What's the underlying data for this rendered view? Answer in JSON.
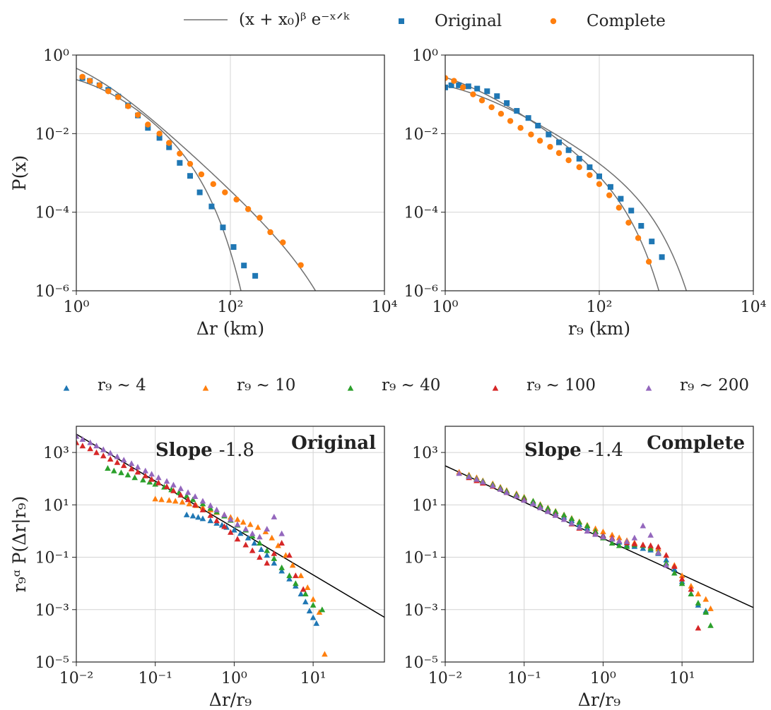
{
  "legend_top": [
    {
      "label": "(x + x₀)ᵝ e⁻ˣᐟᵏ",
      "marker": "line",
      "color": "#707070"
    },
    {
      "label": "Original",
      "marker": "square",
      "color": "#1f77b4"
    },
    {
      "label": "Complete",
      "marker": "circle",
      "color": "#ff7f0e"
    }
  ],
  "legend_bottom": [
    {
      "label": "r₉ ∼ 4",
      "color": "#1f77b4"
    },
    {
      "label": "r₉ ∼ 10",
      "color": "#ff7f0e"
    },
    {
      "label": "r₉ ∼ 40",
      "color": "#2ca02c"
    },
    {
      "label": "r₉ ∼ 100",
      "color": "#d62728"
    },
    {
      "label": "r₉ ∼ 200",
      "color": "#9467bd"
    }
  ],
  "chart_data": [
    {
      "type": "scatter",
      "panel": "top-left",
      "xlabel": "Δr (km)",
      "ylabel": "P(x)",
      "xscale": "log",
      "yscale": "log",
      "xlim": [
        1,
        10000
      ],
      "ylim": [
        1e-06,
        1
      ],
      "xticks": [
        "10⁰",
        "10²",
        "10⁴"
      ],
      "yticks": [
        "10⁰",
        "10⁻²",
        "10⁻⁴",
        "10⁻⁶"
      ],
      "grid": true,
      "series": [
        {
          "name": "Original",
          "marker": "square",
          "color": "#1f77b4",
          "x": [
            1.2,
            1.5,
            2.0,
            2.6,
            3.5,
            4.7,
            6.3,
            8.5,
            12,
            16,
            22,
            30,
            40,
            57,
            80,
            110,
            150,
            210
          ],
          "y": [
            0.26,
            0.22,
            0.17,
            0.13,
            0.088,
            0.052,
            0.029,
            0.014,
            0.0078,
            0.0045,
            0.0018,
            0.00084,
            0.00032,
            0.00014,
            4.1e-05,
            1.3e-05,
            4.4e-06,
            2.4e-06
          ]
        },
        {
          "name": "Complete",
          "marker": "circle",
          "color": "#ff7f0e",
          "x": [
            1.2,
            1.5,
            2.0,
            2.6,
            3.5,
            4.7,
            6.3,
            8.5,
            12,
            16,
            22,
            30,
            42,
            60,
            85,
            120,
            170,
            240,
            330,
            480,
            820
          ],
          "y": [
            0.28,
            0.22,
            0.17,
            0.12,
            0.085,
            0.05,
            0.03,
            0.017,
            0.01,
            0.0058,
            0.0031,
            0.0017,
            0.00092,
            0.00052,
            0.00032,
            0.00021,
            0.00012,
            7.2e-05,
            3.1e-05,
            1.7e-05,
            4.5e-06
          ]
        }
      ],
      "fits": [
        {
          "series": "Original",
          "x0": 1.6,
          "beta": -1.4,
          "k": 20,
          "amp": 0.95
        },
        {
          "series": "Complete",
          "x0": 1.0,
          "beta": -1.8,
          "k": 900,
          "amp": 1.6
        }
      ]
    },
    {
      "type": "scatter",
      "panel": "top-right",
      "xlabel": "r₉ (km)",
      "ylabel": "",
      "xscale": "log",
      "yscale": "log",
      "xlim": [
        1,
        10000
      ],
      "ylim": [
        1e-06,
        1
      ],
      "xticks": [
        "10⁰",
        "10²",
        "10⁴"
      ],
      "yticks": [
        "10⁰",
        "10⁻²",
        "10⁻⁴",
        "10⁻⁶"
      ],
      "grid": true,
      "series": [
        {
          "name": "Original",
          "marker": "square",
          "color": "#1f77b4",
          "x": [
            1.0,
            1.2,
            1.5,
            2.0,
            2.6,
            3.5,
            4.7,
            6.3,
            8.5,
            12,
            16,
            22,
            30,
            40,
            55,
            75,
            100,
            140,
            190,
            260,
            350,
            480,
            650
          ],
          "y": [
            0.15,
            0.17,
            0.17,
            0.16,
            0.14,
            0.12,
            0.09,
            0.06,
            0.038,
            0.025,
            0.016,
            0.0095,
            0.006,
            0.0038,
            0.0023,
            0.0014,
            0.00082,
            0.00044,
            0.00022,
            0.00011,
            4.5e-05,
            1.8e-05,
            7.2e-06
          ]
        },
        {
          "name": "Complete",
          "marker": "circle",
          "color": "#ff7f0e",
          "x": [
            1.0,
            1.3,
            1.7,
            2.3,
            3.0,
            4.0,
            5.3,
            7.0,
            9.5,
            13,
            17,
            23,
            30,
            40,
            55,
            75,
            100,
            135,
            180,
            240,
            320,
            440
          ],
          "y": [
            0.26,
            0.22,
            0.15,
            0.1,
            0.07,
            0.047,
            0.032,
            0.021,
            0.014,
            0.0095,
            0.0066,
            0.0046,
            0.0032,
            0.0021,
            0.0014,
            0.00088,
            0.00052,
            0.00027,
            0.00013,
            5.4e-05,
            2.2e-05,
            5.5e-06
          ]
        }
      ],
      "fits": [
        {
          "series": "Original",
          "x0": 1.6,
          "beta": -1.15,
          "k": 280,
          "amp": 0.5
        },
        {
          "series": "Complete",
          "x0": 1.0,
          "beta": -1.25,
          "k": 110,
          "amp": 0.65
        }
      ]
    },
    {
      "type": "scatter",
      "panel": "bottom-left",
      "annotation": "Original",
      "slope_label": "Slope",
      "slope_value": "-1.8",
      "xlabel": "Δr/r₉",
      "ylabel": "r₉ᵅ P(Δr|r₉)",
      "xscale": "log",
      "yscale": "log",
      "xlim": [
        0.01,
        80
      ],
      "ylim": [
        1e-05,
        10000
      ],
      "xticks": [
        "10⁻²",
        "10⁻¹",
        "10⁰",
        "10¹"
      ],
      "yticks": [
        "10³",
        "10¹",
        "10⁻¹",
        "10⁻³",
        "10⁻⁵"
      ],
      "grid": true,
      "fit_line": {
        "slope": -1.8,
        "x": [
          0.01,
          80
        ],
        "y": [
          5000,
          0.00051
        ]
      },
      "series": [
        {
          "name": "r₉ ∼ 4",
          "color": "#1f77b4",
          "x": [
            0.25,
            0.3,
            0.35,
            0.4,
            0.5,
            0.6,
            0.7,
            0.8,
            1.0,
            1.2,
            1.5,
            1.8,
            2.2,
            2.6,
            3.2,
            4.0,
            5.0,
            6.0,
            7.0,
            8.0,
            9.0,
            10,
            11
          ],
          "y": [
            4.2,
            3.8,
            3.4,
            3.0,
            2.5,
            2.0,
            1.7,
            1.4,
            1.1,
            0.82,
            0.55,
            0.35,
            0.2,
            0.12,
            0.06,
            0.03,
            0.015,
            0.008,
            0.004,
            0.002,
            0.0009,
            0.0005,
            0.0003
          ]
        },
        {
          "name": "r₉ ∼ 10",
          "color": "#ff7f0e",
          "x": [
            0.1,
            0.12,
            0.15,
            0.18,
            0.22,
            0.27,
            0.33,
            0.4,
            0.5,
            0.6,
            0.75,
            0.9,
            1.1,
            1.3,
            1.6,
            2.0,
            2.5,
            3.0,
            3.6,
            4.5,
            5.5,
            7.0,
            8.5,
            10,
            12,
            14
          ],
          "y": [
            17,
            16,
            15,
            14,
            13,
            11,
            9.5,
            8,
            6.5,
            5.2,
            4.2,
            3.4,
            2.8,
            2.2,
            1.8,
            1.4,
            0.95,
            0.55,
            0.28,
            0.12,
            0.05,
            0.02,
            0.007,
            0.0025,
            0.0008,
            2e-05
          ]
        },
        {
          "name": "r₉ ∼ 40",
          "color": "#2ca02c",
          "x": [
            0.025,
            0.03,
            0.037,
            0.045,
            0.055,
            0.07,
            0.085,
            0.1,
            0.13,
            0.16,
            0.2,
            0.25,
            0.3,
            0.4,
            0.5,
            0.6,
            0.75,
            0.9,
            1.1,
            1.4,
            1.7,
            2.1,
            2.6,
            3.2,
            4.0,
            5.0,
            6.0,
            8.0,
            10,
            13
          ],
          "y": [
            250,
            200,
            170,
            140,
            110,
            90,
            75,
            62,
            48,
            38,
            30,
            22,
            16,
            11,
            7.5,
            5.5,
            3.8,
            2.6,
            1.7,
            1.1,
            0.65,
            0.35,
            0.18,
            0.09,
            0.04,
            0.02,
            0.01,
            0.004,
            0.0015,
            0.001
          ]
        },
        {
          "name": "r₉ ∼ 100",
          "color": "#d62728",
          "x": [
            0.01,
            0.012,
            0.015,
            0.018,
            0.022,
            0.027,
            0.033,
            0.04,
            0.05,
            0.06,
            0.075,
            0.09,
            0.11,
            0.14,
            0.17,
            0.21,
            0.26,
            0.32,
            0.4,
            0.5,
            0.6,
            0.75,
            0.9,
            1.1,
            1.4,
            1.7,
            2.1,
            2.6,
            3.2,
            4.0,
            5.0,
            6.0,
            7.5
          ],
          "y": [
            2400,
            1800,
            1400,
            1000,
            750,
            560,
            420,
            320,
            240,
            180,
            130,
            95,
            70,
            50,
            35,
            24,
            16,
            10,
            6.5,
            4.0,
            2.5,
            1.5,
            0.9,
            0.5,
            0.3,
            0.18,
            0.1,
            0.06,
            0.14,
            0.35,
            0.12,
            0.02,
            0.006
          ]
        },
        {
          "name": "r₉ ∼ 200",
          "color": "#9467bd",
          "x": [
            0.01,
            0.012,
            0.015,
            0.018,
            0.022,
            0.027,
            0.033,
            0.04,
            0.05,
            0.06,
            0.075,
            0.09,
            0.11,
            0.14,
            0.17,
            0.21,
            0.26,
            0.32,
            0.4,
            0.5,
            0.6,
            0.75,
            0.9,
            1.1,
            1.4,
            1.7,
            2.1,
            2.6,
            3.2,
            4.0
          ],
          "y": [
            4200,
            3200,
            2400,
            1800,
            1300,
            950,
            700,
            520,
            380,
            280,
            200,
            150,
            110,
            80,
            58,
            42,
            30,
            21,
            14,
            9.5,
            6.5,
            4.2,
            2.8,
            1.8,
            1.2,
            0.8,
            0.6,
            1.2,
            3.5,
            0.8
          ]
        }
      ]
    },
    {
      "type": "scatter",
      "panel": "bottom-right",
      "annotation": "Complete",
      "slope_label": "Slope",
      "slope_value": "-1.4",
      "xlabel": "Δr/r₉",
      "ylabel": "",
      "xscale": "log",
      "yscale": "log",
      "xlim": [
        0.01,
        80
      ],
      "ylim": [
        1e-05,
        10000
      ],
      "xticks": [
        "10⁻²",
        "10⁻¹",
        "10⁰",
        "10¹"
      ],
      "yticks": [
        "10³",
        "10¹",
        "10⁻¹",
        "10⁻³",
        "10⁻⁵"
      ],
      "grid": true,
      "fit_line": {
        "slope": -1.4,
        "x": [
          0.01,
          80
        ],
        "y": [
          310,
          0.0012
        ]
      },
      "series": [
        {
          "name": "r₉ ∼ 4",
          "color": "#1f77b4",
          "x": [
            0.02,
            0.025,
            0.03,
            0.04,
            0.05,
            0.06,
            0.08,
            0.1,
            0.13,
            0.16,
            0.2,
            0.25,
            0.32,
            0.4,
            0.5,
            0.63,
            0.8,
            1.0,
            1.3,
            1.6,
            2.0,
            2.5,
            3.2,
            4.0,
            5.0,
            6.3,
            8.0,
            10,
            13,
            16,
            20
          ],
          "y": [
            120,
            95,
            75,
            55,
            42,
            32,
            23,
            17,
            12,
            9,
            6.5,
            4.8,
            3.4,
            2.5,
            1.8,
            1.3,
            0.95,
            0.7,
            0.5,
            0.38,
            0.3,
            0.26,
            0.22,
            0.19,
            0.14,
            0.08,
            0.035,
            0.012,
            0.004,
            0.0015,
            0.0009
          ]
        },
        {
          "name": "r₉ ∼ 10",
          "color": "#ff7f0e",
          "x": [
            0.015,
            0.02,
            0.025,
            0.03,
            0.04,
            0.05,
            0.06,
            0.08,
            0.1,
            0.13,
            0.16,
            0.2,
            0.25,
            0.32,
            0.4,
            0.5,
            0.63,
            0.8,
            1.0,
            1.3,
            1.6,
            2.0,
            2.5,
            3.2,
            4.0,
            5.0,
            6.3,
            8.0,
            10,
            13,
            16,
            20,
            23
          ],
          "y": [
            180,
            140,
            110,
            85,
            65,
            48,
            36,
            27,
            20,
            14,
            10.5,
            7.8,
            5.8,
            4.2,
            3.1,
            2.3,
            1.7,
            1.25,
            0.95,
            0.72,
            0.56,
            0.44,
            0.36,
            0.3,
            0.25,
            0.21,
            0.12,
            0.05,
            0.02,
            0.008,
            0.004,
            0.0025,
            0.0011
          ]
        },
        {
          "name": "r₉ ∼ 40",
          "color": "#2ca02c",
          "x": [
            0.02,
            0.025,
            0.03,
            0.04,
            0.05,
            0.06,
            0.08,
            0.1,
            0.13,
            0.16,
            0.2,
            0.25,
            0.32,
            0.4,
            0.5,
            0.63,
            0.8,
            1.0,
            1.3,
            1.6,
            2.0,
            2.5,
            3.2,
            4.0,
            5.0,
            6.3,
            8.0,
            10,
            13,
            16,
            20,
            23
          ],
          "y": [
            130,
            100,
            80,
            60,
            45,
            34,
            25,
            19,
            14,
            10,
            7.5,
            5.6,
            4.1,
            3.0,
            2.2,
            1.6,
            1.0,
            0.55,
            0.35,
            0.28,
            0.26,
            0.3,
            0.28,
            0.22,
            0.16,
            0.06,
            0.025,
            0.01,
            0.004,
            0.0018,
            0.0008,
            0.00025
          ]
        },
        {
          "name": "r₉ ∼ 100",
          "color": "#d62728",
          "x": [
            0.02,
            0.025,
            0.03,
            0.04,
            0.05,
            0.06,
            0.08,
            0.1,
            0.13,
            0.16,
            0.2,
            0.25,
            0.32,
            0.4,
            0.5,
            0.63,
            0.8,
            1.0,
            1.3,
            1.6,
            2.0,
            2.5,
            3.2,
            4.0,
            5.0,
            6.3,
            8.0,
            10,
            13,
            16
          ],
          "y": [
            110,
            85,
            68,
            52,
            40,
            30,
            22,
            16,
            11,
            8,
            5.8,
            4.2,
            2.8,
            1.9,
            1.3,
            1.0,
            0.8,
            0.65,
            0.55,
            0.42,
            0.36,
            0.33,
            0.3,
            0.28,
            0.25,
            0.12,
            0.045,
            0.015,
            0.006,
            0.0002
          ]
        },
        {
          "name": "r₉ ∼ 200",
          "color": "#9467bd",
          "x": [
            0.015,
            0.02,
            0.025,
            0.03,
            0.04,
            0.05,
            0.06,
            0.08,
            0.1,
            0.13,
            0.16,
            0.2,
            0.25,
            0.32,
            0.4,
            0.5,
            0.63,
            0.8,
            1.0,
            1.3,
            1.6,
            2.0,
            2.5,
            3.2,
            4.0,
            5.0,
            6.3
          ],
          "y": [
            160,
            120,
            95,
            75,
            55,
            40,
            30,
            22,
            15,
            11,
            7.8,
            5.6,
            4.0,
            2.8,
            2.0,
            1.4,
            1.0,
            0.75,
            0.6,
            0.5,
            0.42,
            0.4,
            0.55,
            1.6,
            0.7,
            0.15,
            0.05
          ]
        }
      ]
    }
  ]
}
